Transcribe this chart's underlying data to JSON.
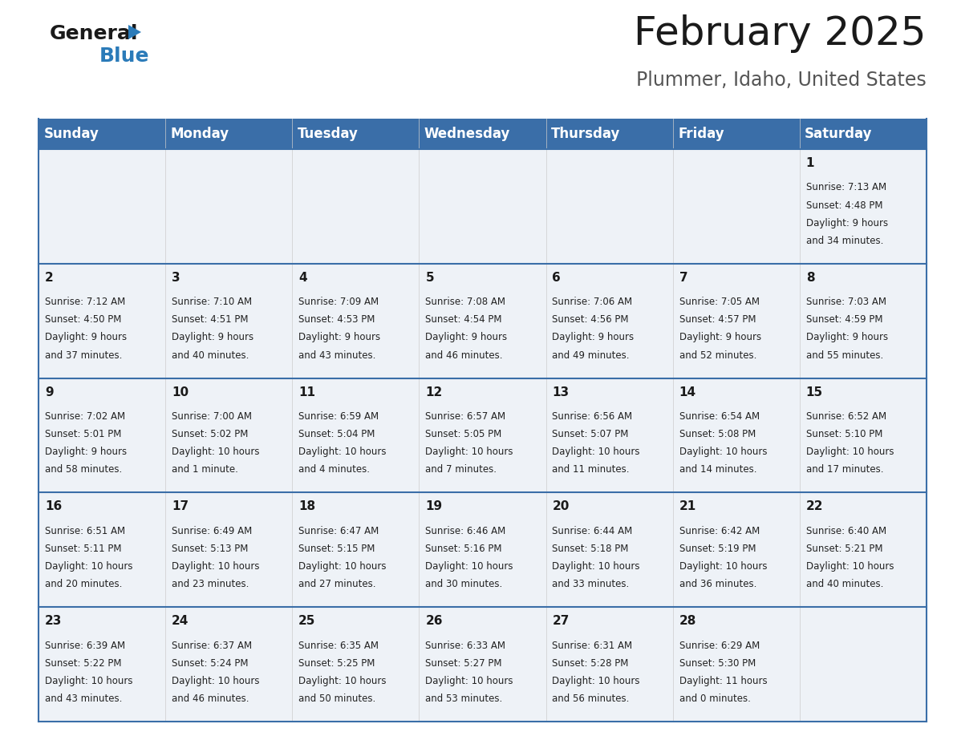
{
  "title": "February 2025",
  "subtitle": "Plummer, Idaho, United States",
  "header_bg": "#3a6ea8",
  "header_text_color": "#ffffff",
  "cell_bg": "#eef2f7",
  "row_line_color": "#3a6ea8",
  "day_headers": [
    "Sunday",
    "Monday",
    "Tuesday",
    "Wednesday",
    "Thursday",
    "Friday",
    "Saturday"
  ],
  "calendar_data": [
    [
      null,
      null,
      null,
      null,
      null,
      null,
      {
        "day": 1,
        "sunrise": "7:13 AM",
        "sunset": "4:48 PM",
        "daylight": "9 hours",
        "daylight2": "and 34 minutes."
      }
    ],
    [
      {
        "day": 2,
        "sunrise": "7:12 AM",
        "sunset": "4:50 PM",
        "daylight": "9 hours",
        "daylight2": "and 37 minutes."
      },
      {
        "day": 3,
        "sunrise": "7:10 AM",
        "sunset": "4:51 PM",
        "daylight": "9 hours",
        "daylight2": "and 40 minutes."
      },
      {
        "day": 4,
        "sunrise": "7:09 AM",
        "sunset": "4:53 PM",
        "daylight": "9 hours",
        "daylight2": "and 43 minutes."
      },
      {
        "day": 5,
        "sunrise": "7:08 AM",
        "sunset": "4:54 PM",
        "daylight": "9 hours",
        "daylight2": "and 46 minutes."
      },
      {
        "day": 6,
        "sunrise": "7:06 AM",
        "sunset": "4:56 PM",
        "daylight": "9 hours",
        "daylight2": "and 49 minutes."
      },
      {
        "day": 7,
        "sunrise": "7:05 AM",
        "sunset": "4:57 PM",
        "daylight": "9 hours",
        "daylight2": "and 52 minutes."
      },
      {
        "day": 8,
        "sunrise": "7:03 AM",
        "sunset": "4:59 PM",
        "daylight": "9 hours",
        "daylight2": "and 55 minutes."
      }
    ],
    [
      {
        "day": 9,
        "sunrise": "7:02 AM",
        "sunset": "5:01 PM",
        "daylight": "9 hours",
        "daylight2": "and 58 minutes."
      },
      {
        "day": 10,
        "sunrise": "7:00 AM",
        "sunset": "5:02 PM",
        "daylight": "10 hours",
        "daylight2": "and 1 minute."
      },
      {
        "day": 11,
        "sunrise": "6:59 AM",
        "sunset": "5:04 PM",
        "daylight": "10 hours",
        "daylight2": "and 4 minutes."
      },
      {
        "day": 12,
        "sunrise": "6:57 AM",
        "sunset": "5:05 PM",
        "daylight": "10 hours",
        "daylight2": "and 7 minutes."
      },
      {
        "day": 13,
        "sunrise": "6:56 AM",
        "sunset": "5:07 PM",
        "daylight": "10 hours",
        "daylight2": "and 11 minutes."
      },
      {
        "day": 14,
        "sunrise": "6:54 AM",
        "sunset": "5:08 PM",
        "daylight": "10 hours",
        "daylight2": "and 14 minutes."
      },
      {
        "day": 15,
        "sunrise": "6:52 AM",
        "sunset": "5:10 PM",
        "daylight": "10 hours",
        "daylight2": "and 17 minutes."
      }
    ],
    [
      {
        "day": 16,
        "sunrise": "6:51 AM",
        "sunset": "5:11 PM",
        "daylight": "10 hours",
        "daylight2": "and 20 minutes."
      },
      {
        "day": 17,
        "sunrise": "6:49 AM",
        "sunset": "5:13 PM",
        "daylight": "10 hours",
        "daylight2": "and 23 minutes."
      },
      {
        "day": 18,
        "sunrise": "6:47 AM",
        "sunset": "5:15 PM",
        "daylight": "10 hours",
        "daylight2": "and 27 minutes."
      },
      {
        "day": 19,
        "sunrise": "6:46 AM",
        "sunset": "5:16 PM",
        "daylight": "10 hours",
        "daylight2": "and 30 minutes."
      },
      {
        "day": 20,
        "sunrise": "6:44 AM",
        "sunset": "5:18 PM",
        "daylight": "10 hours",
        "daylight2": "and 33 minutes."
      },
      {
        "day": 21,
        "sunrise": "6:42 AM",
        "sunset": "5:19 PM",
        "daylight": "10 hours",
        "daylight2": "and 36 minutes."
      },
      {
        "day": 22,
        "sunrise": "6:40 AM",
        "sunset": "5:21 PM",
        "daylight": "10 hours",
        "daylight2": "and 40 minutes."
      }
    ],
    [
      {
        "day": 23,
        "sunrise": "6:39 AM",
        "sunset": "5:22 PM",
        "daylight": "10 hours",
        "daylight2": "and 43 minutes."
      },
      {
        "day": 24,
        "sunrise": "6:37 AM",
        "sunset": "5:24 PM",
        "daylight": "10 hours",
        "daylight2": "and 46 minutes."
      },
      {
        "day": 25,
        "sunrise": "6:35 AM",
        "sunset": "5:25 PM",
        "daylight": "10 hours",
        "daylight2": "and 50 minutes."
      },
      {
        "day": 26,
        "sunrise": "6:33 AM",
        "sunset": "5:27 PM",
        "daylight": "10 hours",
        "daylight2": "and 53 minutes."
      },
      {
        "day": 27,
        "sunrise": "6:31 AM",
        "sunset": "5:28 PM",
        "daylight": "10 hours",
        "daylight2": "and 56 minutes."
      },
      {
        "day": 28,
        "sunrise": "6:29 AM",
        "sunset": "5:30 PM",
        "daylight": "11 hours",
        "daylight2": "and 0 minutes."
      },
      null
    ]
  ],
  "logo_color_general": "#1a1a1a",
  "logo_color_blue": "#2b7bb9",
  "logo_triangle_color": "#2b7bb9",
  "title_fontsize": 36,
  "subtitle_fontsize": 17,
  "header_fontsize": 12,
  "day_num_fontsize": 11,
  "cell_text_fontsize": 8.5
}
